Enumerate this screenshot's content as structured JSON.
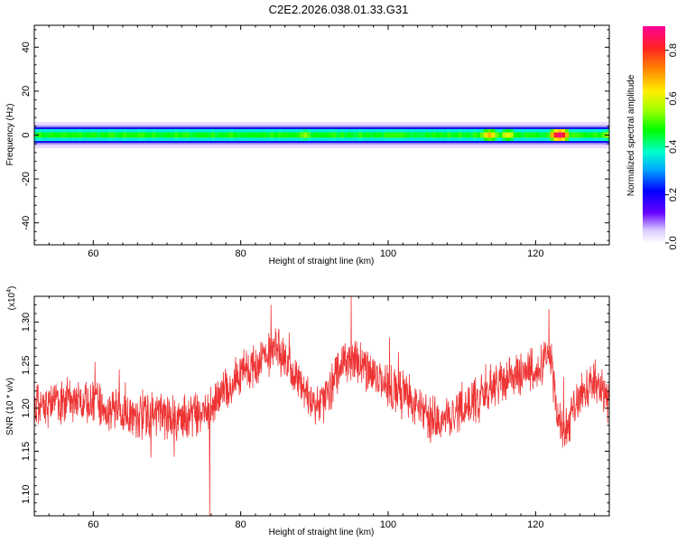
{
  "title": "C2E2.2026.038.01.33.G31",
  "chart_data": [
    {
      "type": "heatmap",
      "xlabel": "Height of straight line (km)",
      "ylabel": "Frequency (Hz)",
      "xlim": [
        52,
        130
      ],
      "ylim": [
        -50,
        50
      ],
      "xticks": [
        60,
        80,
        100,
        120
      ],
      "yticks": [
        40,
        20,
        0,
        -20,
        -40
      ],
      "colorbar": {
        "label": "Normalized spectral amplitude",
        "range": [
          0,
          0.9
        ],
        "ticks": [
          0.0,
          0.2,
          0.4,
          0.6,
          0.8
        ]
      },
      "band": {
        "center_hz": 0,
        "half_width_hz": 3,
        "outer_halo_hz": 6,
        "hotspots": [
          {
            "x": 88.5,
            "amp": 0.55
          },
          {
            "x": 100.5,
            "amp": 0.45
          },
          {
            "x": 113.5,
            "amp": 0.68
          },
          {
            "x": 116.0,
            "amp": 0.62
          },
          {
            "x": 123.0,
            "amp": 0.88
          },
          {
            "x": 129.5,
            "amp": 0.55
          }
        ]
      }
    },
    {
      "type": "line",
      "xlabel": "Height of straight line (km)",
      "ylabel": "SNR (10 * v/v)",
      "y_multiplier": "(x10",
      "y_multiplier_exp": "4",
      "y_multiplier_close": ")",
      "xlim": [
        52,
        130
      ],
      "ylim": [
        1.075,
        1.33
      ],
      "xticks": [
        60,
        80,
        100,
        120
      ],
      "yticks": [
        1.1,
        1.15,
        1.2,
        1.25,
        1.3
      ],
      "ytick_labels": [
        "1.10",
        "1.15",
        "1.20",
        "1.25",
        "1.30"
      ],
      "color": "#ee3333",
      "trend": [
        [
          52,
          1.2
        ],
        [
          56,
          1.21
        ],
        [
          60,
          1.205
        ],
        [
          64,
          1.195
        ],
        [
          68,
          1.19
        ],
        [
          72,
          1.19
        ],
        [
          75,
          1.195
        ],
        [
          78,
          1.22
        ],
        [
          80,
          1.24
        ],
        [
          82,
          1.25
        ],
        [
          85,
          1.27
        ],
        [
          87,
          1.24
        ],
        [
          89,
          1.22
        ],
        [
          90,
          1.2
        ],
        [
          92,
          1.22
        ],
        [
          94,
          1.26
        ],
        [
          96,
          1.25
        ],
        [
          98,
          1.24
        ],
        [
          100,
          1.225
        ],
        [
          102,
          1.22
        ],
        [
          104,
          1.2
        ],
        [
          106,
          1.185
        ],
        [
          108,
          1.19
        ],
        [
          110,
          1.205
        ],
        [
          112,
          1.21
        ],
        [
          115,
          1.23
        ],
        [
          118,
          1.24
        ],
        [
          120,
          1.245
        ],
        [
          122,
          1.26
        ],
        [
          123,
          1.19
        ],
        [
          124,
          1.17
        ],
        [
          125,
          1.2
        ],
        [
          127,
          1.22
        ],
        [
          128,
          1.23
        ],
        [
          130,
          1.21
        ]
      ],
      "noise_amplitude": 0.022,
      "spikes": [
        {
          "x": 75.8,
          "y": 1.075
        },
        {
          "x": 95.0,
          "y": 1.33
        },
        {
          "x": 84.1,
          "y": 1.32
        },
        {
          "x": 121.8,
          "y": 1.315
        }
      ]
    }
  ]
}
